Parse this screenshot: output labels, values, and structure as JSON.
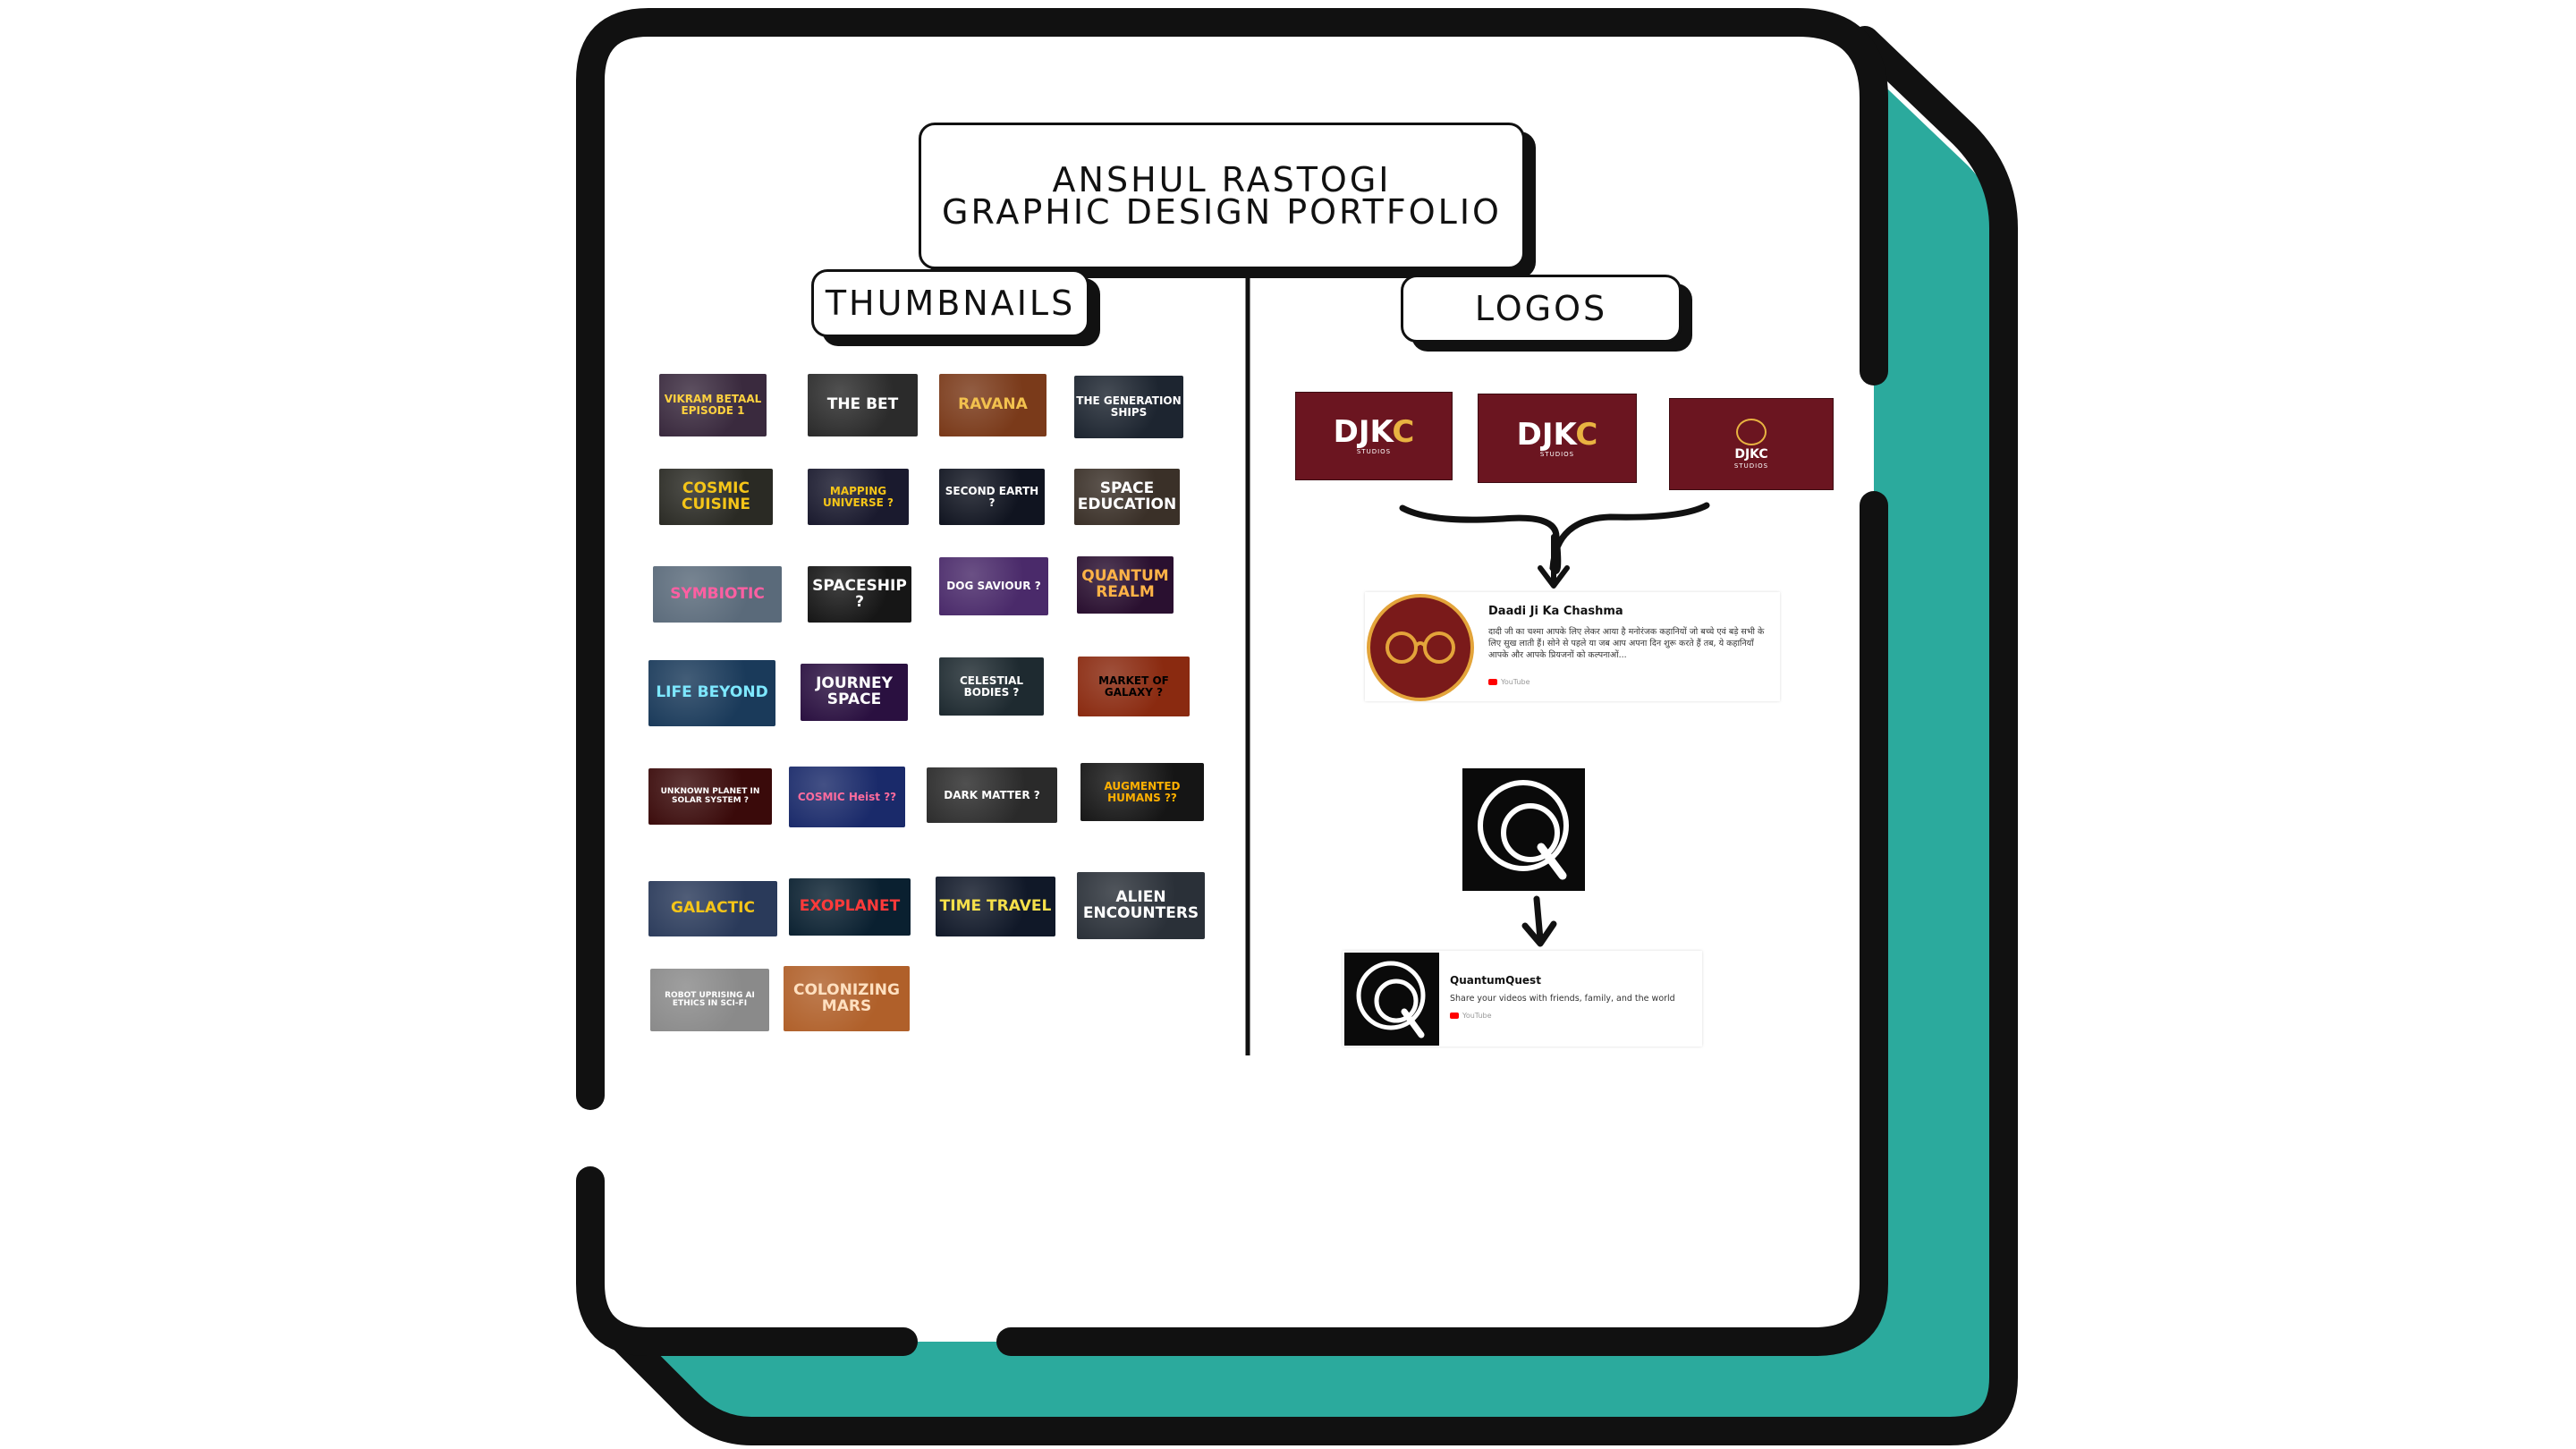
{
  "header": {
    "title_line1": "ANSHUL RASTOGI",
    "title_line2": "GRAPHIC DESIGN PORTFOLIO"
  },
  "sections": {
    "thumbnails_label": "THUMBNAILS",
    "logos_label": "LOGOS"
  },
  "thumbnails": [
    {
      "text": "VIKRAM BETAAL EPISODE 1",
      "bg": "#3a2a3e",
      "fg": "#ffd23f"
    },
    {
      "text": "THE BET",
      "bg": "#2b2b2b",
      "fg": "#ffffff"
    },
    {
      "text": "RAVANA",
      "bg": "#7a3a1a",
      "fg": "#f2c14e"
    },
    {
      "text": "THE GENERATION SHIPS",
      "bg": "#1d2530",
      "fg": "#ffffff"
    },
    {
      "text": "COSMIC CUISINE",
      "bg": "#2a2a24",
      "fg": "#f5c518"
    },
    {
      "text": "MAPPING UNIVERSE ?",
      "bg": "#1a1a2e",
      "fg": "#f5c518"
    },
    {
      "text": "SECOND EARTH ?",
      "bg": "#101420",
      "fg": "#ffffff"
    },
    {
      "text": "SPACE EDUCATION",
      "bg": "#3a3028",
      "fg": "#ffffff"
    },
    {
      "text": "SYMBIOTIC",
      "bg": "#5a6a7a",
      "fg": "#ff5fa2"
    },
    {
      "text": "SPACESHIP ?",
      "bg": "#161616",
      "fg": "#ffffff"
    },
    {
      "text": "DOG SAVIOUR ?",
      "bg": "#4a2a6a",
      "fg": "#ffffff"
    },
    {
      "text": "QUANTUM REALM",
      "bg": "#2a1030",
      "fg": "#ffb347"
    },
    {
      "text": "LIFE BEYOND",
      "bg": "#1a3a5a",
      "fg": "#7ee8ff"
    },
    {
      "text": "JOURNEY SPACE",
      "bg": "#2a1040",
      "fg": "#ffffff"
    },
    {
      "text": "CELESTIAL BODIES ?",
      "bg": "#1e2a30",
      "fg": "#ffffff"
    },
    {
      "text": "MARKET OF GALAXY ?",
      "bg": "#8a2a10",
      "fg": "#000000"
    },
    {
      "text": "UNKNOWN PLANET IN SOLAR SYSTEM ?",
      "bg": "#3a0a0a",
      "fg": "#ffffff"
    },
    {
      "text": "COSMIC Heist ??",
      "bg": "#1a2a6a",
      "fg": "#ff6b9d"
    },
    {
      "text": "DARK MATTER ?",
      "bg": "#2a2a2a",
      "fg": "#ffffff"
    },
    {
      "text": "AUGMENTED HUMANS ??",
      "bg": "#151515",
      "fg": "#ffb000"
    },
    {
      "text": "GALACTIC",
      "bg": "#2a3a5a",
      "fg": "#f5c518"
    },
    {
      "text": "EXOPLANET",
      "bg": "#0a2030",
      "fg": "#ff3a3a"
    },
    {
      "text": "TIME TRAVEL",
      "bg": "#101828",
      "fg": "#f5e04a"
    },
    {
      "text": "ALIEN ENCOUNTERS",
      "bg": "#2a3038",
      "fg": "#ffffff"
    },
    {
      "text": "ROBOT UPRISING AI ETHICS IN SCI-FI",
      "bg": "#8a8a8a",
      "fg": "#ffffff"
    },
    {
      "text": "COLONIZING MARS",
      "bg": "#b0602a",
      "fg": "#ffe0c0"
    }
  ],
  "logos": {
    "djkc": [
      {
        "main": "DJK",
        "accent": "C",
        "sub": "STUDIOS"
      },
      {
        "main": "DJK",
        "accent": "C",
        "sub": "STUDIOS"
      },
      {
        "main": "DJKC",
        "accent": "",
        "sub": "STUDIOS"
      }
    ],
    "channel_card_1": {
      "name": "Daadi Ji Ka Chashma",
      "description": "दादी जी का चश्मा आपके लिए लेकर आया है मनोरंजक कहानियों जो बच्चे एवं बड़े सभी के लिए सुख लाती हैं। सोने से पहले या जब आप अपना दिन शुरू करते हैं तब, ये कहानियाँ आपके और आपके प्रियजनों को कल्पनाओं...",
      "platform": "YouTube"
    },
    "channel_card_2": {
      "name": "QuantumQuest",
      "description": "Share your videos with friends, family, and the world",
      "platform": "YouTube"
    }
  },
  "colors": {
    "accent": "#2baa9d",
    "outline": "#111111",
    "brand_maroon": "#6b1520",
    "brand_gold": "#e8b341"
  }
}
